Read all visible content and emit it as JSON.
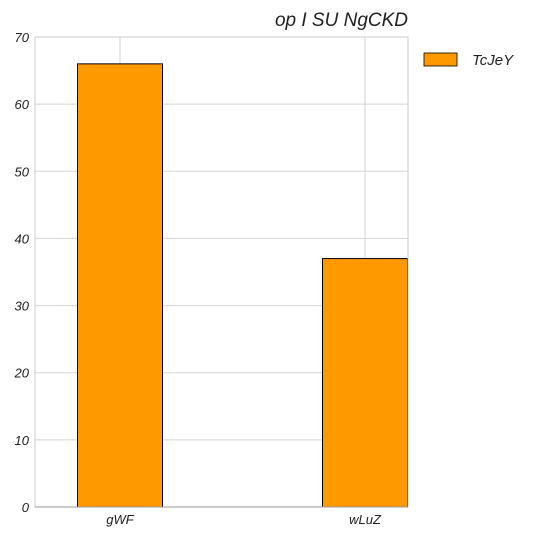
{
  "chart_data": {
    "type": "bar",
    "title": "op I SU NgCKD",
    "xlabel": "",
    "ylabel": "",
    "categories": [
      "gWF",
      "wLuZ"
    ],
    "series": [
      {
        "name": "TcJeY",
        "values": [
          66,
          37
        ],
        "color": "#ff9900"
      }
    ],
    "ylim": [
      0,
      70
    ],
    "yticks": [
      0,
      10,
      20,
      30,
      40,
      50,
      60,
      70
    ],
    "grid": true,
    "legend_position": "right",
    "bar_edge_color": "#000000"
  }
}
